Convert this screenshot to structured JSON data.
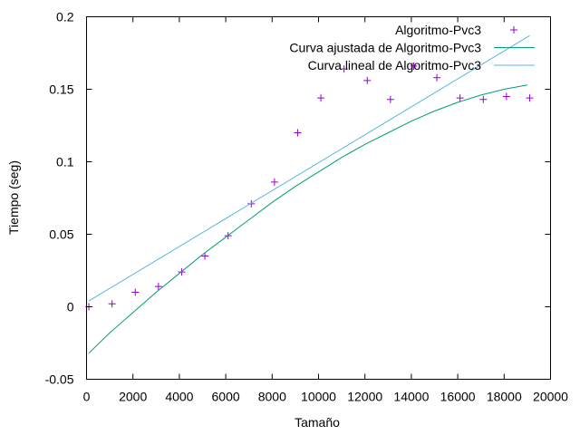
{
  "chart_data": {
    "type": "scatter",
    "title": "",
    "xlabel": "Tamaño",
    "ylabel": "Tiempo (seg)",
    "xlim": [
      0,
      20000
    ],
    "ylim": [
      -0.05,
      0.2
    ],
    "x_ticks": [
      0,
      2000,
      4000,
      6000,
      8000,
      10000,
      12000,
      14000,
      16000,
      18000,
      20000
    ],
    "y_ticks": [
      -0.05,
      0,
      0.05,
      0.1,
      0.15,
      0.2
    ],
    "x_tick_labels": [
      "0",
      "2000",
      "4000",
      "6000",
      "8000",
      "10000",
      "12000",
      "14000",
      "16000",
      "18000",
      "20000"
    ],
    "y_tick_labels": [
      "-0.05",
      "0",
      "0.05",
      "0.1",
      "0.15",
      "0.2"
    ],
    "grid": false,
    "legend_position": "top-right",
    "series": [
      {
        "name": "Algoritmo-Pvc3",
        "kind": "points",
        "marker": "plus",
        "color": "#9400d3",
        "x": [
          100,
          1100,
          2100,
          3100,
          4100,
          5100,
          6100,
          7100,
          8100,
          9100,
          10100,
          11100,
          12100,
          13100,
          14100,
          15100,
          16100,
          17100,
          18100,
          19100
        ],
        "y": [
          0.0,
          0.002,
          0.01,
          0.014,
          0.024,
          0.035,
          0.049,
          0.071,
          0.086,
          0.12,
          0.144,
          0.164,
          0.156,
          0.143,
          0.166,
          0.158,
          0.144,
          0.143,
          0.145,
          0.144
        ]
      },
      {
        "name": "Curva ajustada de Algoritmo-Pvc3",
        "kind": "line",
        "color": "#009e73",
        "x": [
          100,
          1000,
          2000,
          3000,
          4000,
          5000,
          6000,
          7000,
          8000,
          9000,
          10000,
          11000,
          12000,
          13000,
          14000,
          15000,
          16000,
          17000,
          18000,
          19000
        ],
        "y": [
          -0.032,
          -0.018,
          -0.004,
          0.01,
          0.023,
          0.036,
          0.048,
          0.06,
          0.072,
          0.083,
          0.093,
          0.103,
          0.112,
          0.12,
          0.128,
          0.135,
          0.141,
          0.146,
          0.15,
          0.153
        ]
      },
      {
        "name": "Curva lineal de Algoritmo-Pvc3",
        "kind": "line",
        "color": "#56b4e9",
        "x": [
          100,
          19100
        ],
        "y": [
          0.004,
          0.187
        ]
      }
    ]
  }
}
